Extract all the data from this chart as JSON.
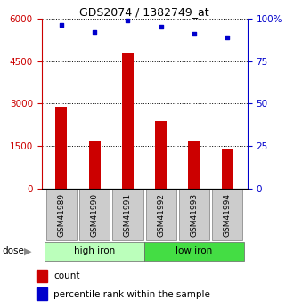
{
  "title": "GDS2074 / 1382749_at",
  "categories": [
    "GSM41989",
    "GSM41990",
    "GSM41991",
    "GSM41992",
    "GSM41993",
    "GSM41994"
  ],
  "bar_values": [
    2900,
    1700,
    4800,
    2400,
    1700,
    1400
  ],
  "percentile_values": [
    96,
    92,
    99,
    95,
    91,
    89
  ],
  "bar_color": "#cc0000",
  "dot_color": "#0000cc",
  "left_ylim": [
    0,
    6000
  ],
  "right_ylim": [
    0,
    100
  ],
  "left_yticks": [
    0,
    1500,
    3000,
    4500,
    6000
  ],
  "right_yticks": [
    0,
    25,
    50,
    75,
    100
  ],
  "right_yticklabels": [
    "0",
    "25",
    "50",
    "75",
    "100%"
  ],
  "left_ycolor": "#cc0000",
  "right_ycolor": "#0000cc",
  "group1_label": "high iron",
  "group2_label": "low iron",
  "group1_indices": [
    0,
    1,
    2
  ],
  "group2_indices": [
    3,
    4,
    5
  ],
  "group1_color": "#bbffbb",
  "group2_color": "#44dd44",
  "dose_label": "dose",
  "xlabel_bg": "#cccccc",
  "legend_count_label": "count",
  "legend_percentile_label": "percentile rank within the sample"
}
